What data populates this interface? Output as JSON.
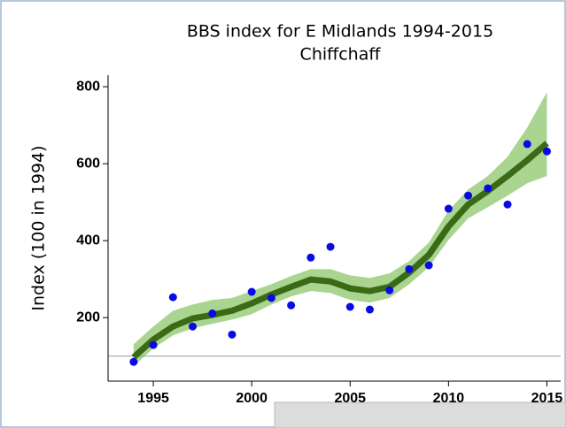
{
  "chart_data": {
    "type": "line",
    "title": "BBS index for E Midlands 1994-2015",
    "subtitle": "Chiffchaff",
    "y_label": "Index (100 in 1994)",
    "x": [
      1994,
      1995,
      1996,
      1997,
      1998,
      1999,
      2000,
      2001,
      2002,
      2003,
      2004,
      2005,
      2006,
      2007,
      2008,
      2009,
      2010,
      2011,
      2012,
      2013,
      2014,
      2015
    ],
    "points": {
      "color": "#0a0ae6",
      "values": [
        85,
        129,
        253,
        177,
        211,
        156,
        267,
        251,
        232,
        356,
        384,
        228,
        221,
        271,
        326,
        336,
        483,
        517,
        536,
        494,
        651,
        632
      ]
    },
    "trend": {
      "color": "#3b6a16",
      "values": [
        97,
        143,
        177,
        198,
        207,
        218,
        237,
        260,
        280,
        299,
        294,
        276,
        269,
        280,
        317,
        363,
        437,
        494,
        529,
        568,
        609,
        653
      ]
    },
    "band": {
      "color": "#a9d590",
      "lower": [
        74,
        120,
        154,
        172,
        184,
        195,
        209,
        234,
        255,
        269,
        264,
        246,
        239,
        251,
        287,
        331,
        402,
        458,
        487,
        517,
        549,
        568
      ],
      "upper": [
        131,
        177,
        218,
        234,
        246,
        251,
        269,
        287,
        308,
        326,
        326,
        310,
        303,
        315,
        347,
        395,
        478,
        533,
        568,
        618,
        694,
        786
      ]
    },
    "reference_line": 100,
    "xlim": [
      1992.7,
      2015.7
    ],
    "xticks": [
      1995,
      2000,
      2005,
      2010,
      2015
    ],
    "ylim": [
      35,
      830
    ],
    "yticks": [
      200,
      400,
      600,
      800
    ]
  }
}
